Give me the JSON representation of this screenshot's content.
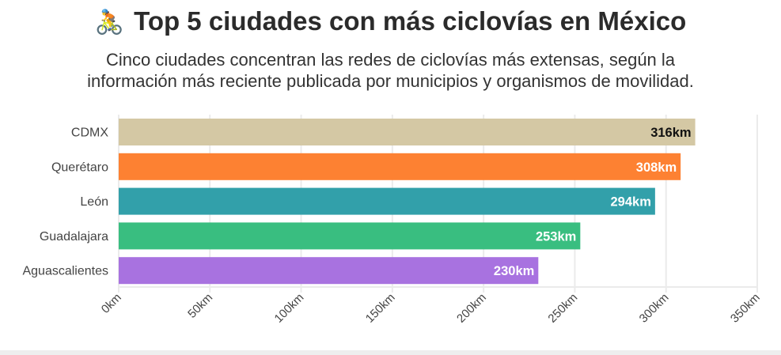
{
  "chart_data": {
    "type": "bar",
    "orientation": "horizontal",
    "title": "Top 5 ciudades con más ciclovías en México",
    "title_icon": "person-biking-emoji",
    "title_emoji": "🚴",
    "subtitle_lines": [
      "Cinco ciudades concentran las redes de ciclovías más extensas, según la",
      "información más reciente publicada por municipios y organismos de movilidad."
    ],
    "categories": [
      "CDMX",
      "Querétaro",
      "León",
      "Guadalajara",
      "Aguascalientes"
    ],
    "values": [
      316,
      308,
      294,
      253,
      230
    ],
    "data_labels": [
      "316km",
      "308km",
      "294km",
      "253km",
      "230km"
    ],
    "colors": [
      "#d4c8a4",
      "#fd8132",
      "#32a0aa",
      "#39be80",
      "#a872e0"
    ],
    "label_colors": [
      "#111111",
      "#ffffff",
      "#ffffff",
      "#ffffff",
      "#ffffff"
    ],
    "xlim": [
      0,
      350
    ],
    "xticks": [
      0,
      50,
      100,
      150,
      200,
      250,
      300,
      350
    ],
    "xtick_labels": [
      "0km",
      "50km",
      "100km",
      "150km",
      "200km",
      "250km",
      "300km",
      "350km"
    ],
    "xlabel": "",
    "ylabel": "",
    "grid": true
  }
}
